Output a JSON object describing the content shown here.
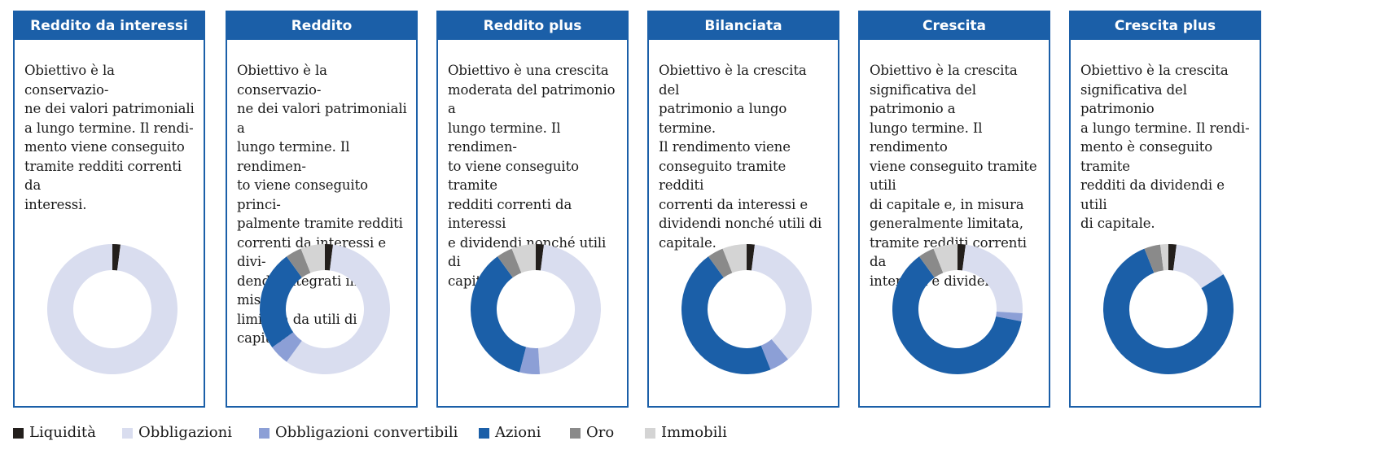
{
  "legend": [
    {
      "label": "Liquidità",
      "color": "#231f1c"
    },
    {
      "label": "Obbligazioni",
      "color": "#d9ddef"
    },
    {
      "label": "Obbligazioni convertibili",
      "color": "#8c9fd6"
    },
    {
      "label": "Azioni",
      "color": "#1b5fa8"
    },
    {
      "label": "Oro",
      "color": "#8a8a8a"
    },
    {
      "label": "Immobili",
      "color": "#d4d4d4"
    }
  ],
  "panels": [
    {
      "title": "Reddito da interessi",
      "text": "Obiettivo è la conservazio-\nne dei valori patrimoniali\na lungo termine. Il rendi-\nmento viene conseguito\ntramite redditi correnti da\ninteressi."
    },
    {
      "title": "Reddito",
      "text": "Obiettivo è la conservazio-\nne dei valori patrimoniali a\nlungo termine. Il rendimen-\nto viene conseguito princi-\npalmente tramite redditi\ncorrenti da interessi e divi-\ndendi, integrati in misura\nlimitata da utili di capitale."
    },
    {
      "title": "Reddito plus",
      "text": "Obiettivo è una crescita\nmoderata del patrimonio a\nlungo termine. Il rendimen-\nto viene conseguito tramite\nredditi correnti da interessi\ne dividendi nonché utili di\ncapitale."
    },
    {
      "title": "Bilanciata",
      "text": "Obiettivo è la crescita del\npatrimonio a lungo termine.\nIl rendimento viene\nconseguito tramite redditi\ncorrenti da interessi e\ndividendi nonché utili di\ncapitale."
    },
    {
      "title": "Crescita",
      "text": "Obiettivo è la crescita\nsignificativa del patrimonio a\nlungo termine. Il rendimento\nviene conseguito tramite utili\ndi capitale e, in misura\ngeneralmente limitata,\ntramite redditi correnti da\ninteressi e dividendi."
    },
    {
      "title": "Crescita plus",
      "text": "Obiettivo è la crescita\nsignificativa del patrimonio\na lungo termine. Il rendi-\nmento è conseguito tramite\nredditi da dividendi e utili\ndi capitale."
    }
  ],
  "chart_data": {
    "type": "donut",
    "series_order": [
      "Liquidità",
      "Obbligazioni",
      "Obbligazioni convertibili",
      "Azioni",
      "Oro",
      "Immobili"
    ],
    "charts": [
      {
        "title": "Reddito da interessi",
        "values": [
          2,
          98,
          0,
          0,
          0,
          0
        ]
      },
      {
        "title": "Reddito",
        "values": [
          2,
          58,
          5,
          25,
          4,
          6
        ]
      },
      {
        "title": "Reddito plus",
        "values": [
          2,
          47,
          5,
          36,
          4,
          6
        ]
      },
      {
        "title": "Bilanciata",
        "values": [
          2,
          37,
          5,
          46,
          4,
          6
        ]
      },
      {
        "title": "Crescita",
        "values": [
          2,
          24,
          2,
          62,
          4,
          6
        ]
      },
      {
        "title": "Crescita plus",
        "values": [
          2,
          14,
          0,
          78,
          4,
          2
        ]
      }
    ]
  }
}
